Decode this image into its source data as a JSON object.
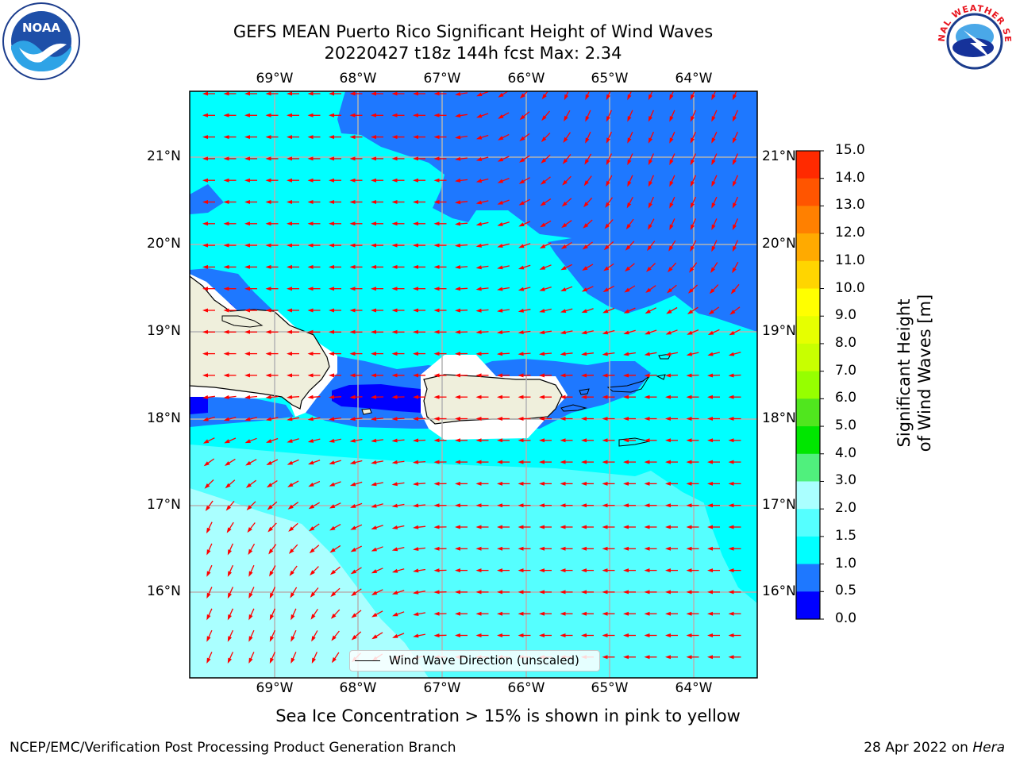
{
  "title_line1": "GEFS MEAN Puerto Rico Significant Height of Wind Waves",
  "title_line2": "20220427 t18z 144h fcst   Max: 2.34",
  "lon_labels": [
    "69°W",
    "68°W",
    "67°W",
    "66°W",
    "65°W",
    "64°W"
  ],
  "lat_labels": [
    "21°N",
    "20°N",
    "19°N",
    "18°N",
    "17°N",
    "16°N"
  ],
  "colorbar": {
    "title": "Significant Height of Wind Waves [m]",
    "ticks": [
      "15.0",
      "14.0",
      "13.0",
      "12.0",
      "11.0",
      "10.0",
      "9.0",
      "8.0",
      "7.0",
      "6.0",
      "5.0",
      "4.0",
      "3.0",
      "2.0",
      "1.5",
      "1.0",
      "0.5",
      "0.0"
    ],
    "colors": [
      "#ff0000",
      "#ff2a00",
      "#ff5500",
      "#ff8000",
      "#ffaa00",
      "#ffd500",
      "#ffff00",
      "#e6ff00",
      "#c8ff00",
      "#96ff00",
      "#50e61e",
      "#00e600",
      "#50f07d",
      "#aaffff",
      "#55ffff",
      "#00ffff",
      "#1e78ff",
      "#0000ff"
    ]
  },
  "map_colors": {
    "band_0_0.5": "#0000ff",
    "band_0.5_1.0": "#1e78ff",
    "band_1.0_1.5": "#00ffff",
    "band_1.5_2.0": "#55ffff",
    "band_2.0_3.0": "#aaffff",
    "land": "#efefdc",
    "arrow": "#ff0000"
  },
  "legend_label": "Wind Wave Direction (unscaled)",
  "caption": "Sea Ice Concentration > 15% is shown in pink to yellow",
  "footer_left": "NCEP/EMC/Verification Post Processing Product Generation Branch",
  "footer_date": "28 Apr 2022 on ",
  "footer_host": "Hera",
  "logos": {
    "noaa_text": "NOAA",
    "nws_text": "NATIONAL WEATHER SERVICE"
  }
}
